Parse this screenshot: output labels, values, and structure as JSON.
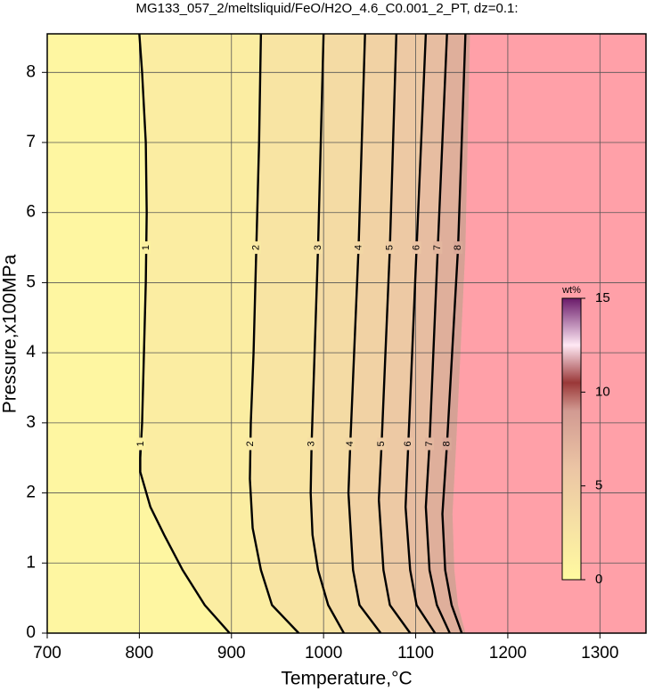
{
  "chart_data": {
    "type": "contour",
    "title": "MG133_057_2/meltsliquid/FeO/H2O_4.6_C0.001_2_PT, dz=0.1:",
    "x_label": "Temperature,°C",
    "y_label": "Pressure,x100MPa",
    "xlim": [
      700,
      1350
    ],
    "ylim": [
      0,
      8.55
    ],
    "xticks": [
      700,
      800,
      900,
      1000,
      1100,
      1200,
      1300
    ],
    "yticks": [
      0,
      1,
      2,
      3,
      4,
      5,
      6,
      7,
      8
    ],
    "grid": true,
    "contours": [
      {
        "level": 1,
        "pressure": [
          8.55,
          8,
          7,
          6,
          5,
          4,
          3,
          2.5,
          2.3,
          1.8,
          1.4,
          0.9,
          0.4,
          0
        ],
        "temperature": [
          800,
          803,
          807,
          808,
          807,
          805,
          803,
          801,
          801,
          812,
          827,
          847,
          871,
          898
        ]
      },
      {
        "level": 2,
        "pressure": [
          8.55,
          7,
          5.5,
          4,
          3,
          2.2,
          1.5,
          0.9,
          0.4,
          0
        ],
        "temperature": [
          932,
          930,
          927,
          924,
          921,
          920,
          923,
          932,
          944,
          973
        ]
      },
      {
        "level": 3,
        "pressure": [
          8.55,
          5.5,
          2.7,
          2,
          1.4,
          0.9,
          0.4,
          0
        ],
        "temperature": [
          1000,
          994,
          987,
          986,
          988,
          994,
          1005,
          1022
        ]
      },
      {
        "level": 4,
        "pressure": [
          8.55,
          5.5,
          2.7,
          2,
          0.9,
          0.4,
          0
        ],
        "temperature": [
          1045,
          1038,
          1029,
          1027,
          1032,
          1039,
          1062
        ]
      },
      {
        "level": 5,
        "pressure": [
          8.55,
          5.5,
          2.7,
          1.9,
          0.9,
          0.4,
          0
        ],
        "temperature": [
          1079,
          1072,
          1063,
          1060,
          1065,
          1072,
          1094
        ]
      },
      {
        "level": 6,
        "pressure": [
          8.55,
          5.5,
          2.7,
          1.8,
          0.9,
          0.4,
          0
        ],
        "temperature": [
          1111,
          1101,
          1092,
          1089,
          1094,
          1101,
          1121
        ]
      },
      {
        "level": 7,
        "pressure": [
          8.55,
          5.5,
          2.7,
          1.8,
          0.9,
          0.4,
          0
        ],
        "temperature": [
          1134,
          1124,
          1115,
          1111,
          1115,
          1123,
          1137
        ]
      },
      {
        "level": 8,
        "pressure": [
          8.55,
          5.5,
          2.7,
          1.7,
          0.9,
          0.4,
          0
        ],
        "temperature": [
          1154,
          1146,
          1134,
          1129,
          1132,
          1139,
          1150
        ]
      }
    ],
    "region": {
      "color": "#ffa0a8",
      "pressure": [
        8.55,
        5.5,
        2.7,
        1.7,
        0.9,
        0.4,
        0
      ],
      "temperature": [
        1159,
        1154,
        1144,
        1140,
        1142,
        1146,
        1154
      ]
    },
    "colormap": [
      {
        "value": 0,
        "color": "#fffaa0"
      },
      {
        "value": 3,
        "color": "#f6e0a4"
      },
      {
        "value": 6,
        "color": "#ebc4a4"
      },
      {
        "value": 9,
        "color": "#d29a92"
      },
      {
        "value": 10.5,
        "color": "#9a3838"
      },
      {
        "value": 12.5,
        "color": "#ffe8f4"
      },
      {
        "value": 15,
        "color": "#6a1a6a"
      }
    ],
    "colorbar": {
      "label": "wt%",
      "lim": [
        0,
        15
      ],
      "ticks": [
        0,
        5,
        10,
        15
      ]
    }
  }
}
